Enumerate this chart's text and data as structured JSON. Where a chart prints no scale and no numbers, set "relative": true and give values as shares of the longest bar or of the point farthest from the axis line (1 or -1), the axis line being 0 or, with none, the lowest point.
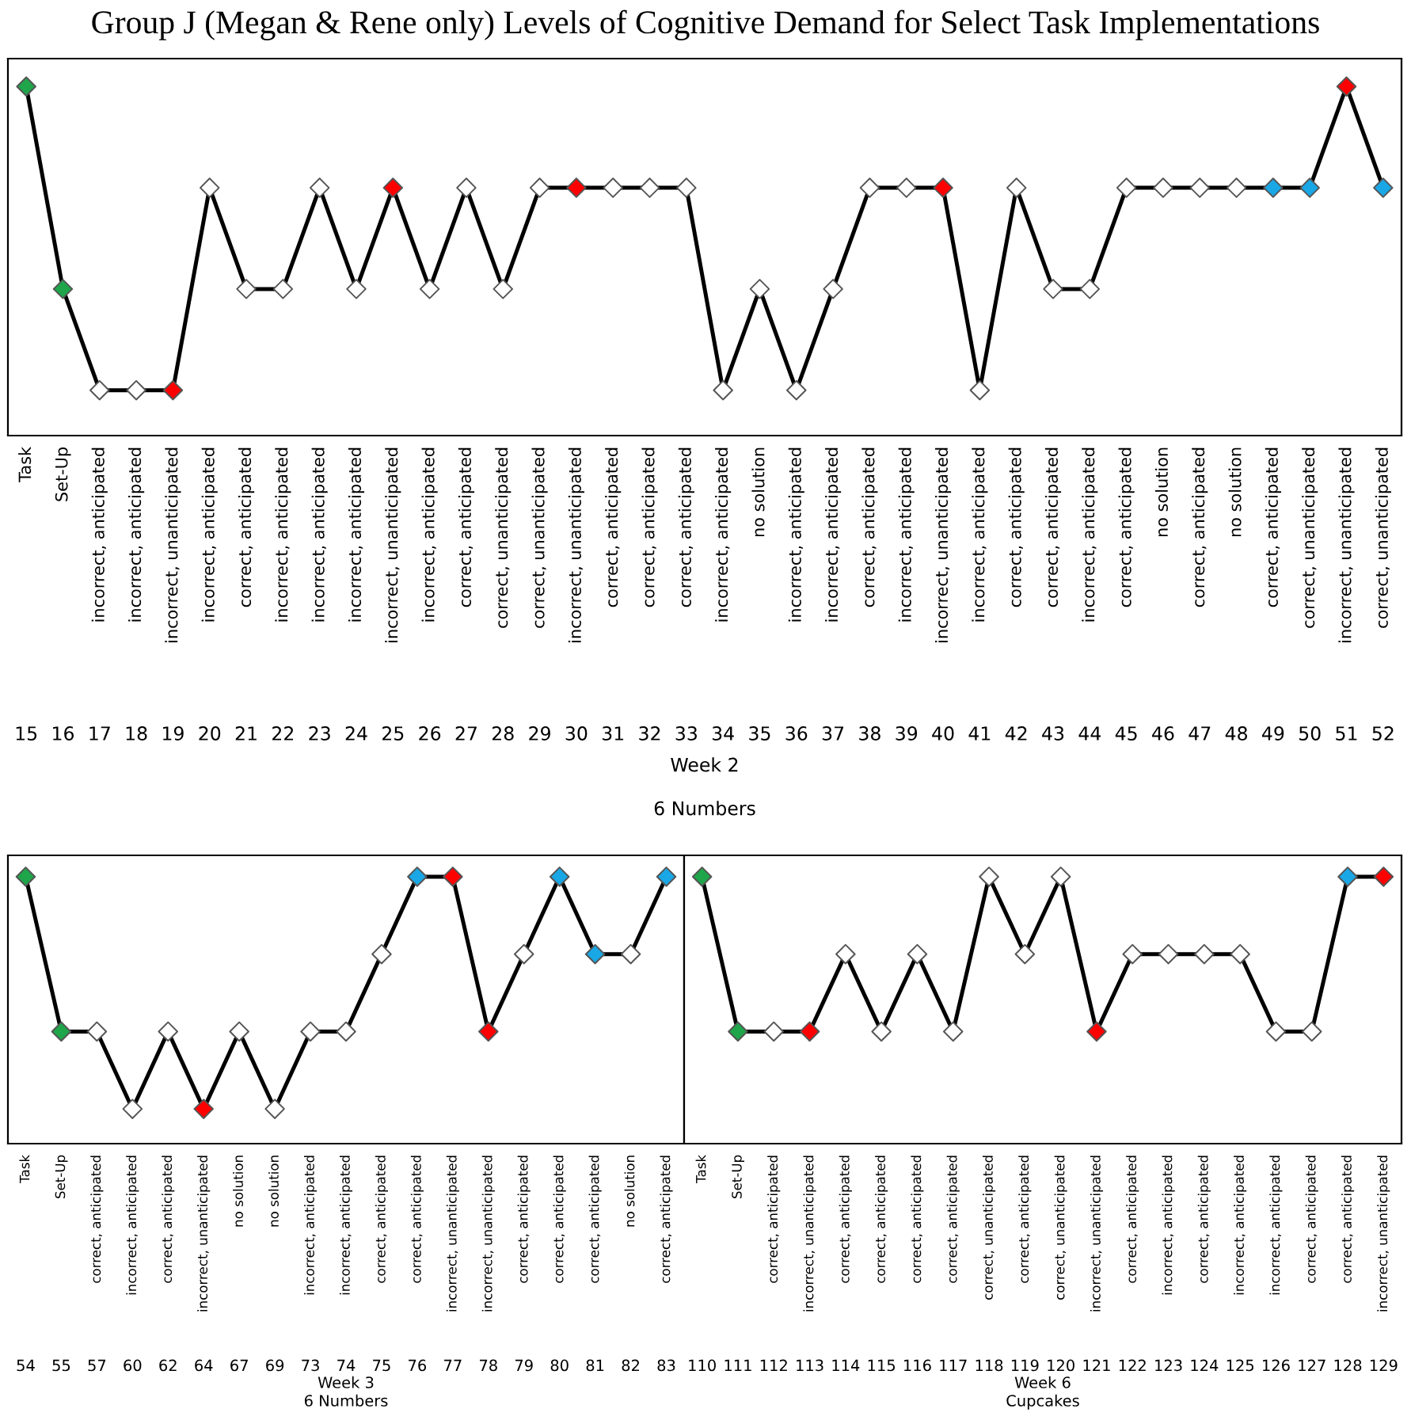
{
  "chart_data": [
    {
      "type": "line",
      "title": "Group J (Megan & Rene only) Levels of Cognitive Demand for Select Task Implementations",
      "relative": true,
      "marker": "diamond",
      "line_style": "solid",
      "legend": false,
      "grid": false,
      "xlabel": "Week 2",
      "categories": [
        "15",
        "16",
        "17",
        "18",
        "19",
        "20",
        "21",
        "22",
        "23",
        "24",
        "25",
        "26",
        "27",
        "28",
        "29",
        "30",
        "31",
        "32",
        "33",
        "34",
        "35",
        "36",
        "37",
        "38",
        "39",
        "40",
        "41",
        "42",
        "43",
        "44",
        "45",
        "46",
        "47",
        "48",
        "49",
        "50",
        "51",
        "52"
      ],
      "series": [
        {
          "color": "#000000",
          "values": [
            1,
            0.42,
            0.13,
            0.13,
            0.13,
            0.71,
            0.42,
            0.42,
            0.71,
            0.42,
            0.71,
            0.42,
            0.71,
            0.42,
            0.71,
            0.71,
            0.71,
            0.71,
            0.71,
            0.13,
            0.42,
            0.13,
            0.42,
            0.71,
            0.71,
            0.71,
            0.13,
            0.71,
            0.42,
            0.42,
            0.71,
            0.71,
            0.71,
            0.71,
            0.71,
            0.71,
            1,
            0.71
          ],
          "colors": [
            "#1fa54a",
            "#1fa54a",
            "#ffffff",
            "#ffffff",
            "#ff0000",
            "#ffffff",
            "#ffffff",
            "#ffffff",
            "#ffffff",
            "#ffffff",
            "#ff0000",
            "#ffffff",
            "#ffffff",
            "#ffffff",
            "#ffffff",
            "#ff0000",
            "#ffffff",
            "#ffffff",
            "#ffffff",
            "#ffffff",
            "#ffffff",
            "#ffffff",
            "#ffffff",
            "#ffffff",
            "#ffffff",
            "#ff0000",
            "#ffffff",
            "#ffffff",
            "#ffffff",
            "#ffffff",
            "#ffffff",
            "#ffffff",
            "#ffffff",
            "#ffffff",
            "#1aa7e6",
            "#1aa7e6",
            "#ff0000",
            "#1aa7e6"
          ]
        }
      ],
      "annotations": [
        "Task",
        "Set-Up",
        "incorrect, anticipated",
        "incorrect, anticipated",
        "incorrect, unanticipated",
        "incorrect, anticipated",
        "correct, anticipated",
        "incorrect, anticipated",
        "incorrect, anticipated",
        "incorrect, anticipated",
        "incorrect, unanticipated",
        "incorrect, anticipated",
        "correct, anticipated",
        "correct, unanticipated",
        "correct, unanticipated",
        "incorrect, unanticipated",
        "correct, anticipated",
        "correct, anticipated",
        "correct, anticipated",
        "incorrect, anticipated",
        "no solution",
        "incorrect, anticipated",
        "incorrect, anticipated",
        "correct, anticipated",
        "incorrect, anticipated",
        "incorrect, unanticipated",
        "incorrect, anticipated",
        "correct, anticipated",
        "correct, anticipated",
        "incorrect, anticipated",
        "correct, anticipated",
        "no solution",
        "correct, anticipated",
        "no solution",
        "correct, anticipated",
        "correct, unanticipated",
        "incorrect, unanticipated",
        "correct, unanticipated",
        "6 Numbers"
      ]
    },
    {
      "type": "line",
      "relative": true,
      "marker": "diamond",
      "line_style": "solid",
      "legend": false,
      "grid": false,
      "xlabel": "Week 3",
      "categories": [
        "54",
        "55",
        "57",
        "60",
        "62",
        "64",
        "67",
        "69",
        "73",
        "74",
        "75",
        "76",
        "77",
        "78",
        "79",
        "80",
        "81",
        "82",
        "83"
      ],
      "series": [
        {
          "color": "#000000",
          "values": [
            1,
            0.42,
            0.42,
            0.13,
            0.42,
            0.13,
            0.42,
            0.13,
            0.42,
            0.42,
            0.71,
            1,
            1,
            0.42,
            0.71,
            1,
            0.71,
            0.71,
            1
          ],
          "colors": [
            "#1fa54a",
            "#1fa54a",
            "#ffffff",
            "#ffffff",
            "#ffffff",
            "#ff0000",
            "#ffffff",
            "#ffffff",
            "#ffffff",
            "#ffffff",
            "#ffffff",
            "#1aa7e6",
            "#ff0000",
            "#ff0000",
            "#ffffff",
            "#1aa7e6",
            "#1aa7e6",
            "#ffffff",
            "#1aa7e6"
          ]
        }
      ],
      "annotations": [
        "Task",
        "Set-Up",
        "correct, anticipated",
        "incorrect, anticipated",
        "correct, anticipated",
        "incorrect, unanticipated",
        "no solution",
        "no solution",
        "incorrect, anticipated",
        "incorrect, anticipated",
        "correct, anticipated",
        "correct, anticipated",
        "incorrect, unanticipated",
        "incorrect, unanticipated",
        "correct, anticipated",
        "correct, anticipated",
        "correct, anticipated",
        "no solution",
        "correct, anticipated",
        "6 Numbers"
      ]
    },
    {
      "type": "line",
      "relative": true,
      "marker": "diamond",
      "line_style": "solid",
      "legend": false,
      "grid": false,
      "xlabel": "Week 6",
      "categories": [
        "110",
        "111",
        "112",
        "113",
        "114",
        "115",
        "116",
        "117",
        "118",
        "119",
        "120",
        "121",
        "122",
        "123",
        "124",
        "125",
        "126",
        "127",
        "128",
        "129"
      ],
      "series": [
        {
          "color": "#000000",
          "values": [
            1,
            0.42,
            0.42,
            0.42,
            0.71,
            0.42,
            0.71,
            0.42,
            1,
            0.71,
            1,
            0.42,
            0.71,
            0.71,
            0.71,
            0.71,
            0.42,
            0.42,
            1,
            1
          ],
          "colors": [
            "#1fa54a",
            "#1fa54a",
            "#ffffff",
            "#ff0000",
            "#ffffff",
            "#ffffff",
            "#ffffff",
            "#ffffff",
            "#ffffff",
            "#ffffff",
            "#ffffff",
            "#ff0000",
            "#ffffff",
            "#ffffff",
            "#ffffff",
            "#ffffff",
            "#ffffff",
            "#ffffff",
            "#1aa7e6",
            "#ff0000"
          ]
        }
      ],
      "annotations": [
        "Task",
        "Set-Up",
        "correct, anticipated",
        "incorrect, unanticipated",
        "correct, anticipated",
        "correct, anticipated",
        "correct, anticipated",
        "correct, anticipated",
        "correct, unanticipated",
        "correct, anticipated",
        "correct, unanticipated",
        "incorrect, unanticipated",
        "correct, anticipated",
        "incorrect, anticipated",
        "correct, anticipated",
        "incorrect, anticipated",
        "incorrect, anticipated",
        "correct, anticipated",
        "correct, anticipated",
        "incorrect, unanticipated",
        "Cupcakes"
      ]
    }
  ]
}
